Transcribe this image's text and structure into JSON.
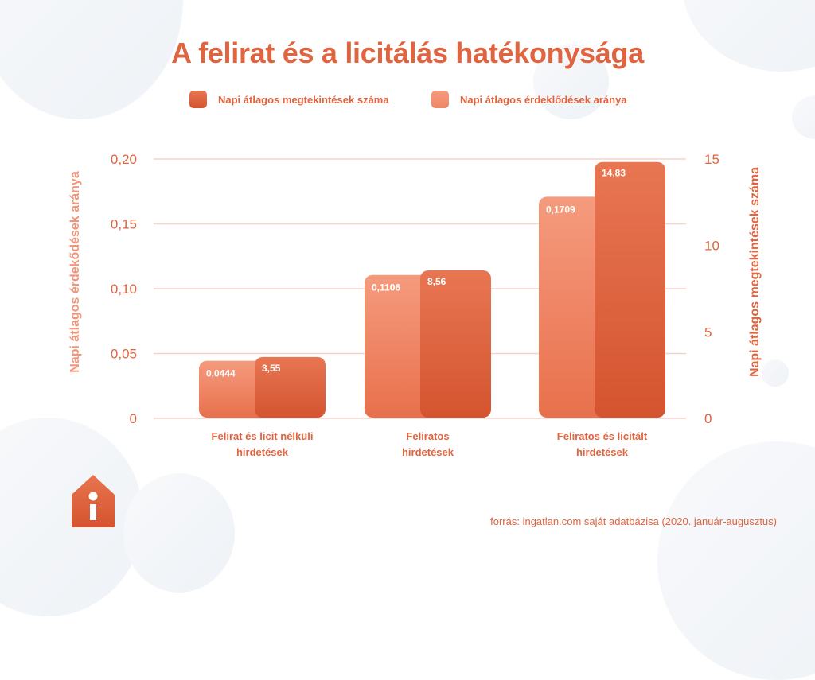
{
  "title": "A felirat és a licitálás hatékonysága",
  "legend": [
    {
      "label": "Napi átlagos megtekintések száma",
      "color": "#db5a35"
    },
    {
      "label": "Napi átlagos érdeklődések aránya",
      "color": "#f4957a"
    }
  ],
  "source": "forrás: ingatlan.com saját adatbázisa (2020. január-augusztus)",
  "logo_icon": "house-info-icon",
  "colors": {
    "accent": "#e0643f",
    "light_bar_top": "#f59b7e",
    "light_bar_bottom": "#e8704c",
    "dark_bar_top": "#e87653",
    "dark_bar_bottom": "#d4542f",
    "gridline": "#f6d3c9",
    "left_axis_title": "#f4957a",
    "right_axis_title": "#e0643f"
  },
  "chart_data": {
    "type": "bar",
    "title": "A felirat és a licitálás hatékonysága",
    "categories": [
      [
        "Felirat és licit nélküli",
        "hirdetések"
      ],
      [
        "Feliratos",
        "hirdetések"
      ],
      [
        "Feliratos és licitált",
        "hirdetések"
      ]
    ],
    "series": [
      {
        "name": "Napi átlagos érdeklődések aránya",
        "axis": "left",
        "values": [
          0.0444,
          0.1106,
          0.1709
        ],
        "labels": [
          "0,0444",
          "0,1106",
          "0,1709"
        ]
      },
      {
        "name": "Napi átlagos megtekintések száma",
        "axis": "right",
        "values": [
          3.55,
          8.56,
          14.83
        ],
        "labels": [
          "3,55",
          "8,56",
          "14,83"
        ]
      }
    ],
    "left_axis": {
      "label": "Napi átlagos érdekődések aránya",
      "ylim": [
        0,
        0.2
      ],
      "ticks": [
        0,
        0.05,
        0.1,
        0.15,
        0.2
      ],
      "tick_labels": [
        "0",
        "0,05",
        "0,10",
        "0,15",
        "0,20"
      ]
    },
    "right_axis": {
      "label": "Napi átlagos megtekintések száma",
      "ylim": [
        0,
        15
      ],
      "ticks": [
        0,
        5,
        10,
        15
      ],
      "tick_labels": [
        "0",
        "5",
        "10",
        "15"
      ]
    },
    "grid": true,
    "legend_position": "top-center"
  }
}
